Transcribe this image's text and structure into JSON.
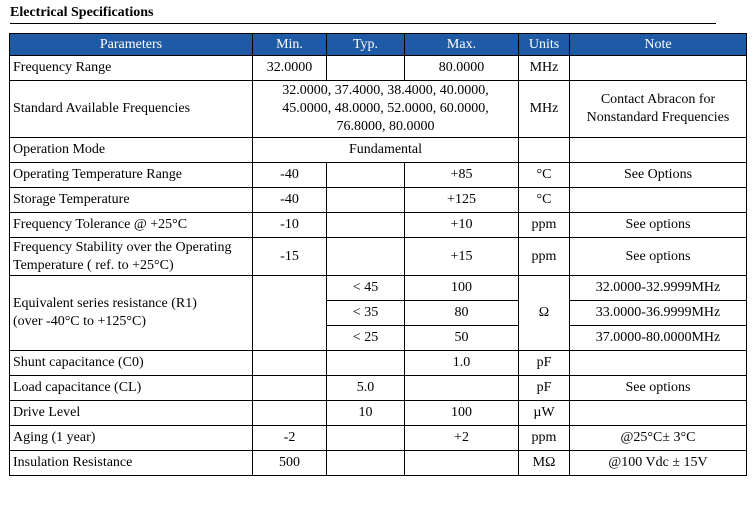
{
  "title": "Electrical Specifications",
  "headers": [
    "Parameters",
    "Min.",
    "Typ.",
    "Max.",
    "Units",
    "Note"
  ],
  "rows": {
    "freq_range": {
      "param": "Frequency Range",
      "min": "32.0000",
      "max": "80.0000",
      "units": "MHz"
    },
    "std_freqs": {
      "param": "Standard Available Frequencies",
      "values": "32.0000, 37.4000, 38.4000, 40.0000, 45.0000, 48.0000, 52.0000, 60.0000, 76.8000, 80.0000",
      "units": "MHz",
      "note": "Contact Abracon for Nonstandard Frequencies"
    },
    "op_mode": {
      "param": "Operation Mode",
      "value": "Fundamental"
    },
    "op_temp": {
      "param": "Operating Temperature Range",
      "min": "-40",
      "max": "+85",
      "units": "°C",
      "note": "See Options"
    },
    "stor_temp": {
      "param": "Storage Temperature",
      "min": "-40",
      "max": "+125",
      "units": "°C"
    },
    "freq_tol": {
      "param": "Frequency Tolerance @ +25°C",
      "min": "-10",
      "max": "+10",
      "units": "ppm",
      "note": "See options"
    },
    "freq_stab": {
      "param": "Frequency Stability over the Operating Temperature ( ref. to +25°C)",
      "min": "-15",
      "max": "+15",
      "units": "ppm",
      "note": "See options"
    },
    "esr": {
      "param_line1": "Equivalent series resistance (R1)",
      "param_line2": "(over -40°C to +125°C)",
      "units": "Ω",
      "subrows": [
        {
          "typ": "< 45",
          "max": "100",
          "note": "32.0000-32.9999MHz"
        },
        {
          "typ": "< 35",
          "max": "80",
          "note": "33.0000-36.9999MHz"
        },
        {
          "typ": "< 25",
          "max": "50",
          "note": "37.0000-80.0000MHz"
        }
      ]
    },
    "shunt": {
      "param": "Shunt capacitance (C0)",
      "max": "1.0",
      "units": "pF"
    },
    "load": {
      "param": "Load capacitance (CL)",
      "typ": "5.0",
      "units": "pF",
      "note": "See options"
    },
    "drive": {
      "param": "Drive Level",
      "typ": "10",
      "max": "100",
      "units": "µW"
    },
    "aging": {
      "param": "Aging (1 year)",
      "min": "-2",
      "max": "+2",
      "units": "ppm",
      "note": "@25°C± 3°C"
    },
    "insul": {
      "param": "Insulation Resistance",
      "min": "500",
      "units": "MΩ",
      "note": "@100 Vdc ± 15V"
    }
  }
}
